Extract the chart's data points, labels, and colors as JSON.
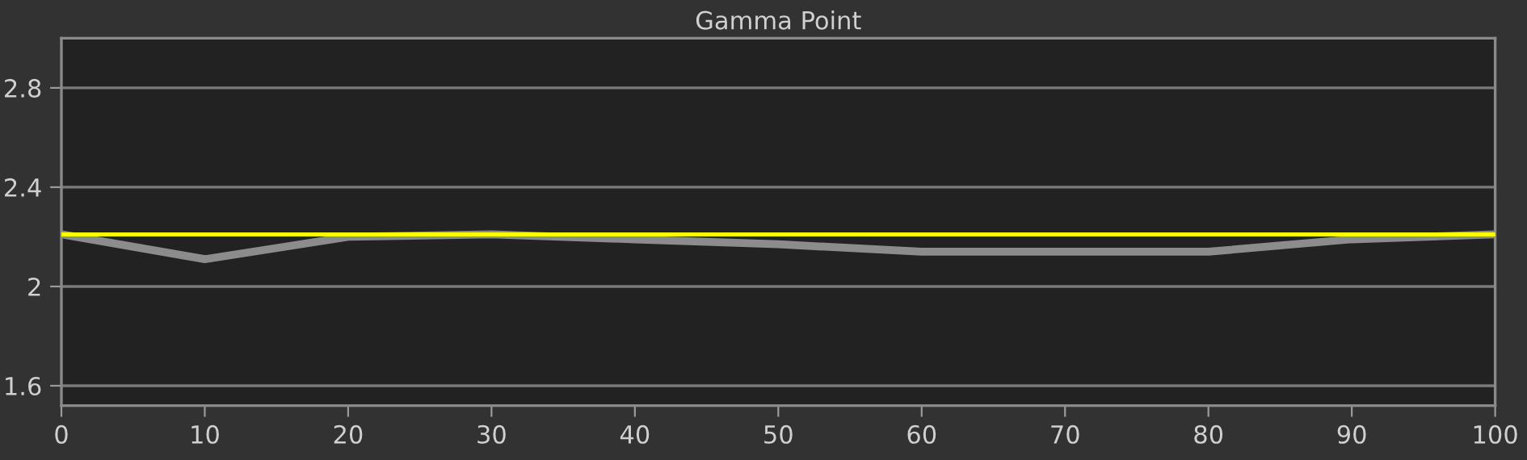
{
  "chart_data": {
    "type": "line",
    "title": "Gamma Point",
    "x": [
      0,
      10,
      20,
      30,
      40,
      50,
      60,
      70,
      80,
      90,
      100
    ],
    "series": [
      {
        "color": "#8c8c8c",
        "values": [
          2.21,
          2.11,
          2.2,
          2.21,
          2.19,
          2.17,
          2.14,
          2.14,
          2.14,
          2.19,
          2.21
        ]
      }
    ],
    "ref_lines": [
      {
        "axis": "y",
        "value": 2.21,
        "color": "#ffff00"
      }
    ],
    "xlim": [
      0,
      100
    ],
    "xticks": [
      0,
      10,
      20,
      30,
      40,
      50,
      60,
      70,
      80,
      90,
      100
    ],
    "ylim": [
      1.52,
      3.0
    ],
    "yticks": [
      1.6,
      2,
      2.4,
      2.8
    ],
    "grid": "y",
    "legend": false,
    "marker": "none",
    "line_style": "solid"
  }
}
